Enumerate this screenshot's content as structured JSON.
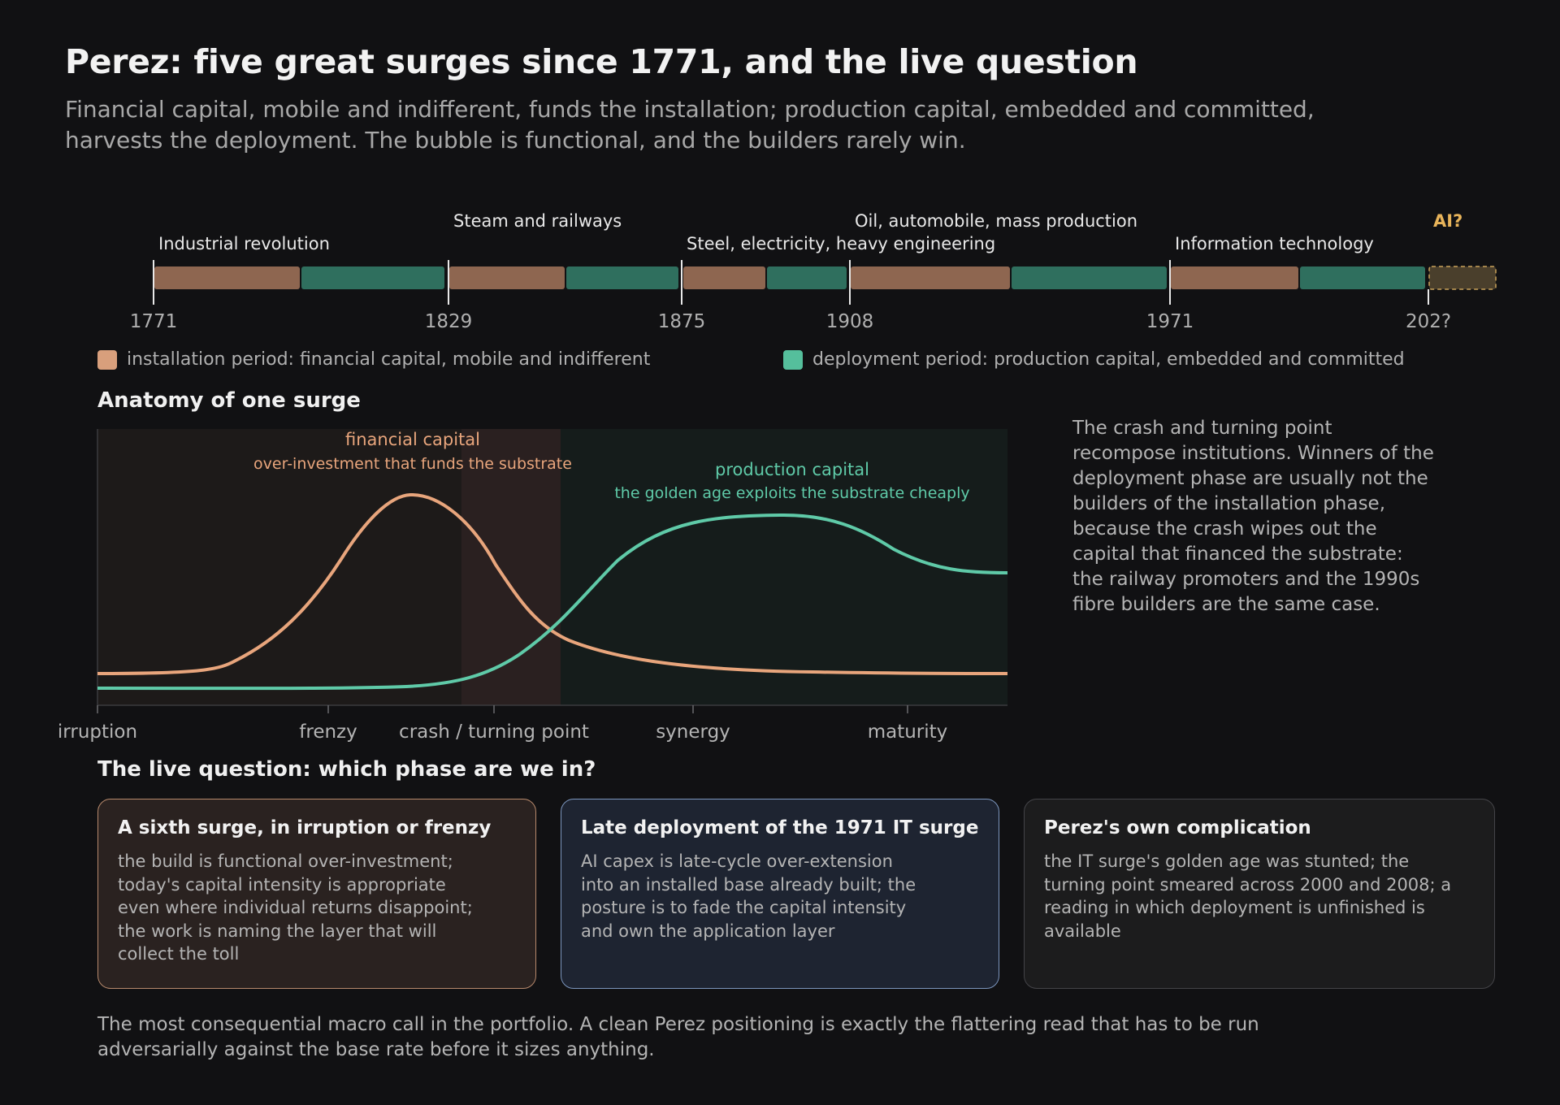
{
  "header": {
    "title": "Perez: five great surges since 1771, and the live question",
    "subtitle": "Financial capital, mobile and indifferent, funds the installation; production capital, embedded and committed, harvests the deployment. The bubble is functional, and the builders rarely win."
  },
  "colors": {
    "installation": "#8e6650",
    "deployment": "#2f6f5e",
    "installation_legend": "#d89f7c",
    "deployment_legend": "#55bf9c",
    "financial_curve": "#e8a57c",
    "production_curve": "#5fcaa8",
    "ai_accent": "#e8b45a"
  },
  "timeline": {
    "surges": [
      {
        "name": "Industrial revolution",
        "start": "1771",
        "installation_share": 0.5
      },
      {
        "name": "Steam and railways",
        "start": "1829",
        "installation_share": 0.5
      },
      {
        "name": "Steel, electricity, heavy engineering",
        "start": "1875",
        "installation_share": 0.5
      },
      {
        "name": "Oil, automobile, mass production",
        "start": "1908",
        "installation_share": 0.5
      },
      {
        "name": "Information technology",
        "start": "1971",
        "installation_share": 0.5
      }
    ],
    "future": {
      "name": "AI?",
      "start": "202?"
    }
  },
  "legend": {
    "installation": "installation period: financial capital, mobile and indifferent",
    "deployment": "deployment period: production capital, embedded and committed"
  },
  "anatomy": {
    "heading": "Anatomy of one surge",
    "phases": [
      "irruption",
      "frenzy",
      "crash / turning point",
      "synergy",
      "maturity"
    ],
    "financial_label": "financial capital",
    "financial_sublabel": "over-investment that funds the substrate",
    "production_label": "production capital",
    "production_sublabel": "the golden age exploits the substrate cheaply",
    "note": "The crash and turning point recompose institutions. Winners of the deployment phase are usually not the builders of the installation phase, because the crash wipes out the capital that financed the substrate: the railway promoters and the 1990s fibre builders are the same case."
  },
  "question": {
    "heading": "The live question: which phase are we in?",
    "cards": [
      {
        "title": "A sixth surge, in irruption or frenzy",
        "body": "the build is functional over-investment; today's capital intensity is appropriate even where individual returns disappoint; the work is naming the layer that will collect the toll"
      },
      {
        "title": "Late deployment of the 1971 IT surge",
        "body": "AI capex is late-cycle over-extension into an installed base already built; the posture is to fade the capital intensity and own the application layer"
      },
      {
        "title": "Perez's own complication",
        "body": "the IT surge's golden age was stunted; the turning point smeared across 2000 and 2008; a reading in which deployment is unfinished is available"
      }
    ]
  },
  "footer": "The most consequential macro call in the portfolio. A clean Perez positioning is exactly the flattering read that has to be run adversarially against the base rate before it sizes anything."
}
